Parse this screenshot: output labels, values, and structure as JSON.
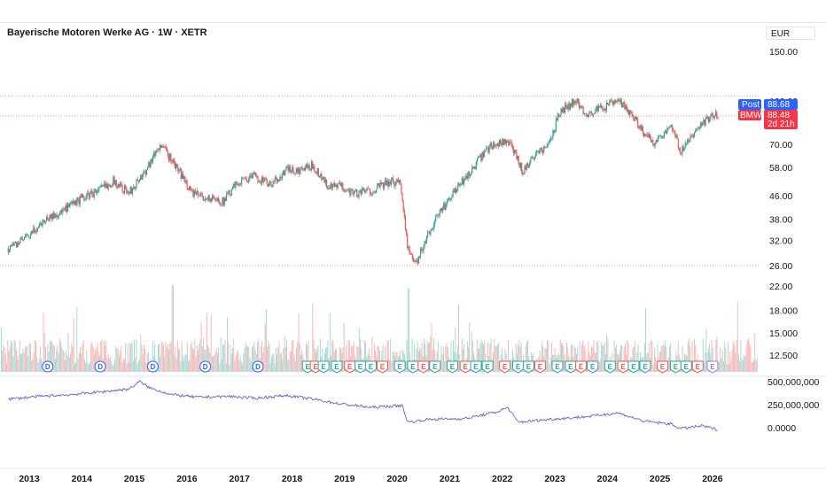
{
  "header": {
    "title": "Bayerische Motoren Werke AG · 1W · XETR",
    "currency": "EUR"
  },
  "colors": {
    "up": "#26a69a",
    "down": "#ef5350",
    "rsi_line": "#7e57c2",
    "post_tag": "#2962ff",
    "price_tag": "#f23645",
    "dividend": "#2962ff"
  },
  "price_tags": {
    "post_label": "Post",
    "post_value": "88.68",
    "symbol_label": "BMW",
    "symbol_value": "88.48",
    "countdown": "2d 21h"
  },
  "chart_data": {
    "type": "line",
    "price_axis": {
      "scale": "log",
      "ticks": [
        "150.00",
        "100.00",
        "70.00",
        "58.00",
        "46.00",
        "38.00",
        "32.00",
        "26.00",
        "22.00",
        "18.000",
        "15.000",
        "12.500"
      ]
    },
    "indicator_axis": {
      "ticks": [
        "500,000,000",
        "250,000,000",
        "0.0000"
      ]
    },
    "x_ticks": [
      "2013",
      "2014",
      "2015",
      "2016",
      "2017",
      "2018",
      "2019",
      "2020",
      "2021",
      "2022",
      "2023",
      "2024",
      "2025",
      "2026"
    ],
    "price_series": {
      "name": "BMW",
      "x": [
        2012.6,
        2013.0,
        2013.3,
        2013.6,
        2014.0,
        2014.3,
        2014.6,
        2014.9,
        2015.2,
        2015.5,
        2015.8,
        2016.1,
        2016.4,
        2016.7,
        2017.0,
        2017.3,
        2017.6,
        2017.9,
        2018.1,
        2018.4,
        2018.7,
        2018.9,
        2019.2,
        2019.5,
        2019.8,
        2020.05,
        2020.2,
        2020.35,
        2020.7,
        2021.0,
        2021.4,
        2021.8,
        2022.1,
        2022.4,
        2022.6,
        2022.9,
        2023.1,
        2023.4,
        2023.6,
        2023.9,
        2024.2,
        2024.5,
        2024.7,
        2024.9,
        2025.2,
        2025.4,
        2025.7,
        2025.95,
        2026.1
      ],
      "values": [
        30,
        33,
        38,
        40,
        45,
        48,
        52,
        47,
        56,
        70,
        58,
        47,
        45,
        44,
        52,
        54,
        50,
        57,
        56,
        59,
        49,
        50,
        47,
        48,
        51,
        52,
        30,
        26,
        37,
        45,
        56,
        70,
        72,
        56,
        64,
        70,
        92,
        100,
        90,
        94,
        100,
        88,
        76,
        71,
        82,
        66,
        78,
        88,
        88.48
      ]
    },
    "reference_levels": [
      104.0,
      88.48,
      26.0
    ],
    "volume_bars": 700,
    "rsi_series": {
      "x": [
        2012.6,
        2013.2,
        2013.8,
        2014.4,
        2014.9,
        2015.1,
        2015.3,
        2015.7,
        2016.2,
        2016.8,
        2017.3,
        2017.9,
        2018.4,
        2018.9,
        2019.5,
        2020.1,
        2020.2,
        2020.6,
        2021.3,
        2021.9,
        2022.1,
        2022.3,
        2022.9,
        2023.6,
        2024.2,
        2024.7,
        2025.2,
        2025.4,
        2025.8,
        2026.1
      ],
      "values": [
        310000000,
        340000000,
        360000000,
        390000000,
        420000000,
        500000000,
        430000000,
        360000000,
        330000000,
        340000000,
        320000000,
        350000000,
        310000000,
        260000000,
        220000000,
        240000000,
        60000000,
        90000000,
        100000000,
        170000000,
        220000000,
        60000000,
        90000000,
        120000000,
        160000000,
        70000000,
        40000000,
        -10000000,
        20000000,
        -20000000
      ]
    },
    "dividend_marker": "D",
    "dividend_years": [
      2013.35,
      2014.35,
      2015.35,
      2016.35,
      2017.35
    ],
    "earnings_marker": "E",
    "earnings_events": [
      2018.3,
      2018.45,
      2018.6,
      2018.85,
      2019.1,
      2019.3,
      2019.5,
      2019.72,
      2020.05,
      2020.3,
      2020.5,
      2020.72,
      2021.05,
      2021.3,
      2021.5,
      2021.72,
      2022.05,
      2022.3,
      2022.5,
      2022.72,
      2023.05,
      2023.3,
      2023.5,
      2023.72,
      2024.05,
      2024.3,
      2024.5,
      2024.72,
      2025.05,
      2025.3,
      2025.5,
      2025.72,
      2026.0
    ]
  }
}
